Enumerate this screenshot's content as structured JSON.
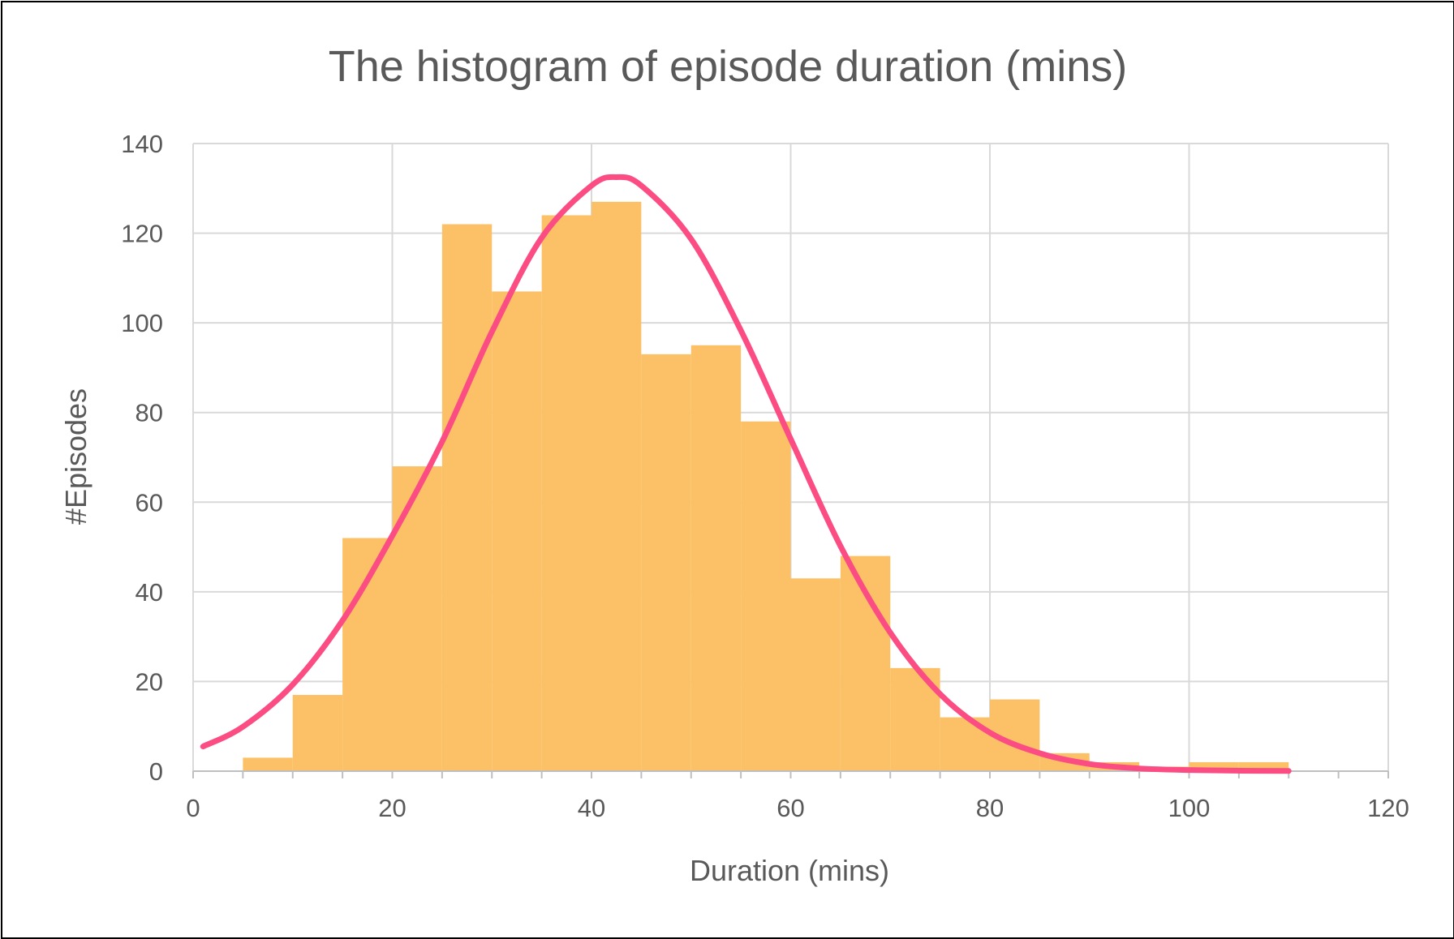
{
  "chart_data": {
    "type": "bar",
    "title": "The histogram of episode duration (mins)",
    "xlabel": "Duration (mins)",
    "ylabel": "#Episodes",
    "xlim": [
      0,
      120
    ],
    "ylim": [
      0,
      140
    ],
    "x_ticks": [
      0,
      20,
      40,
      60,
      80,
      100,
      120
    ],
    "y_ticks": [
      0,
      20,
      40,
      60,
      80,
      100,
      120,
      140
    ],
    "grid": true,
    "legend": "none",
    "bar_color": "#FCC166",
    "curve_color": "#FB4D84",
    "bins": [
      {
        "start": 5,
        "end": 10,
        "count": 3
      },
      {
        "start": 10,
        "end": 15,
        "count": 17
      },
      {
        "start": 15,
        "end": 20,
        "count": 52
      },
      {
        "start": 20,
        "end": 25,
        "count": 68
      },
      {
        "start": 25,
        "end": 30,
        "count": 122
      },
      {
        "start": 30,
        "end": 35,
        "count": 107
      },
      {
        "start": 35,
        "end": 40,
        "count": 124
      },
      {
        "start": 40,
        "end": 45,
        "count": 127
      },
      {
        "start": 45,
        "end": 50,
        "count": 93
      },
      {
        "start": 50,
        "end": 55,
        "count": 95
      },
      {
        "start": 55,
        "end": 60,
        "count": 78
      },
      {
        "start": 60,
        "end": 65,
        "count": 43
      },
      {
        "start": 65,
        "end": 70,
        "count": 48
      },
      {
        "start": 70,
        "end": 75,
        "count": 23
      },
      {
        "start": 75,
        "end": 80,
        "count": 12
      },
      {
        "start": 80,
        "end": 85,
        "count": 16
      },
      {
        "start": 85,
        "end": 90,
        "count": 4
      },
      {
        "start": 90,
        "end": 95,
        "count": 2
      },
      {
        "start": 95,
        "end": 100,
        "count": 1
      },
      {
        "start": 100,
        "end": 105,
        "count": 2
      },
      {
        "start": 105,
        "end": 110,
        "count": 2
      }
    ],
    "fit_curve": {
      "type": "normal",
      "x": [
        1,
        5,
        10,
        15,
        20,
        25,
        30,
        35,
        40,
        42.5,
        45,
        50,
        55,
        60,
        65,
        70,
        75,
        80,
        85,
        90,
        95,
        100,
        105,
        110
      ],
      "y": [
        5.5,
        9.9,
        19.3,
        33.6,
        52.5,
        73.5,
        98.0,
        119.0,
        130.6,
        132.5,
        130.6,
        118.7,
        98.3,
        74.1,
        50.2,
        30.9,
        17.2,
        8.6,
        4.0,
        1.6,
        0.6,
        0.25,
        0.1,
        0.04
      ]
    }
  }
}
